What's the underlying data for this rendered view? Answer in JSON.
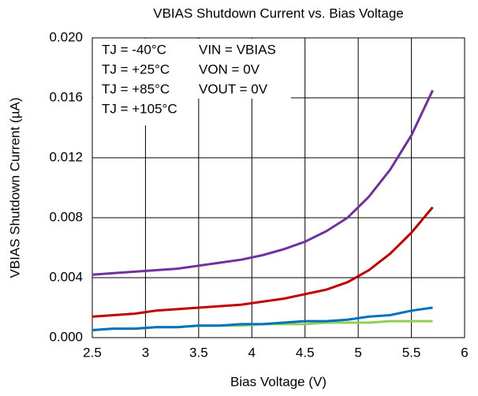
{
  "chart_data": {
    "type": "line",
    "title": "VBIAS Shutdown Current vs. Bias Voltage",
    "x_label": "Bias Voltage (V)",
    "y_label": "VBIAS Shutdown Current (µA)",
    "x": [
      2.5,
      2.7,
      2.9,
      3.1,
      3.3,
      3.5,
      3.7,
      3.9,
      4.1,
      4.3,
      4.5,
      4.7,
      4.9,
      5.1,
      5.3,
      5.5,
      5.7
    ],
    "series": [
      {
        "name": "TJ = -40°C",
        "color": "#92d050",
        "values": [
          0.0005,
          0.0006,
          0.0006,
          0.0007,
          0.0007,
          0.0008,
          0.0008,
          0.0008,
          0.0009,
          0.0009,
          0.0009,
          0.001,
          0.001,
          0.001,
          0.0011,
          0.0011,
          0.0011
        ]
      },
      {
        "name": "TJ = +25°C",
        "color": "#0070c0",
        "values": [
          0.0005,
          0.0006,
          0.0006,
          0.0007,
          0.0007,
          0.0008,
          0.0008,
          0.0009,
          0.0009,
          0.001,
          0.0011,
          0.0011,
          0.0012,
          0.0014,
          0.0015,
          0.0018,
          0.002
        ]
      },
      {
        "name": "TJ = +85°C",
        "color": "#c00000",
        "values": [
          0.0014,
          0.0015,
          0.0016,
          0.0018,
          0.0019,
          0.002,
          0.0021,
          0.0022,
          0.0024,
          0.0026,
          0.0029,
          0.0032,
          0.0037,
          0.0045,
          0.0056,
          0.007,
          0.0087
        ]
      },
      {
        "name": "TJ = +105°C",
        "color": "#7030a0",
        "values": [
          0.0042,
          0.0043,
          0.0044,
          0.0045,
          0.0046,
          0.0048,
          0.005,
          0.0052,
          0.0055,
          0.0059,
          0.0064,
          0.0071,
          0.008,
          0.0094,
          0.0112,
          0.0135,
          0.0165
        ]
      }
    ],
    "annotations": [
      "VIN = VBIAS",
      "VON = 0V",
      "VOUT = 0V"
    ],
    "xlim": [
      2.5,
      6
    ],
    "xticks": [
      2.5,
      3,
      3.5,
      4,
      4.5,
      5,
      5.5,
      6
    ],
    "ylim": [
      0,
      0.02
    ],
    "yticks": [
      {
        "value": 0,
        "label": "0.000"
      },
      0.004,
      0.008,
      0.012,
      0.016,
      {
        "value": 0.02,
        "label": "0.020"
      }
    ],
    "grid": true
  }
}
